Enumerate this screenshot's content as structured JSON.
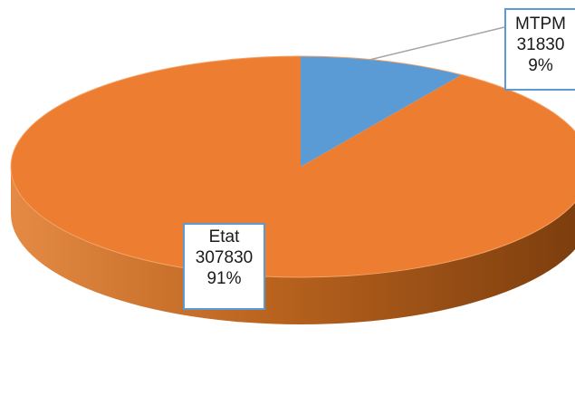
{
  "chart_data": {
    "type": "pie",
    "style": "3d",
    "slices": [
      {
        "label": "MTPM",
        "value": 31830,
        "percent": "9%",
        "color": "#5b9bd5"
      },
      {
        "label": "Etat",
        "value": 307830,
        "percent": "91%",
        "color": "#ed7d31"
      }
    ],
    "label_border_color": "#5b9bd5",
    "leader_line_color": "#a5a5a5"
  }
}
